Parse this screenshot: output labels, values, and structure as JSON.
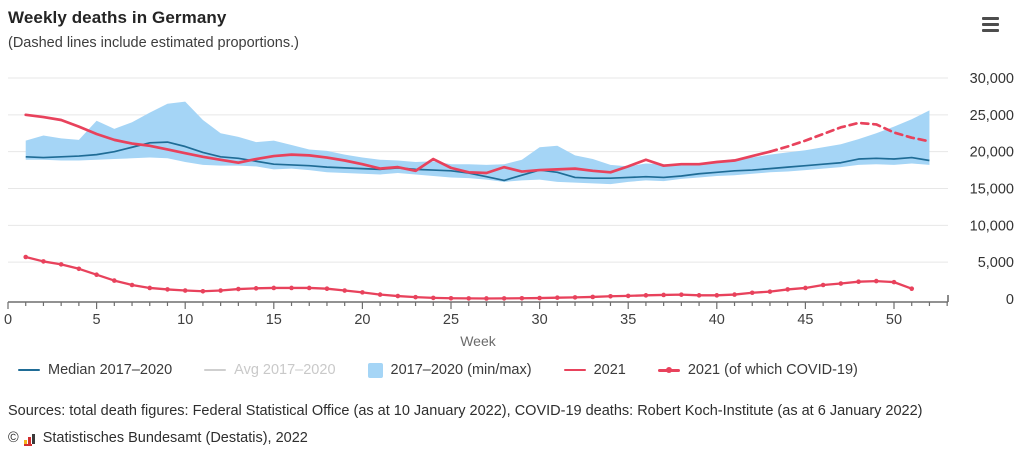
{
  "header": {
    "title": "Weekly deaths in Germany",
    "subtitle": "(Dashed lines include estimated proportions.)"
  },
  "colors": {
    "red": "#e8425c",
    "median_blue": "#1f6c96",
    "band_blue": "#a5d5f6",
    "disabled_gray": "#cfcfcf",
    "grid": "#e7e7e7",
    "axis": "#6e6e6e",
    "tick_text": "#3f3f3f"
  },
  "chart_data": {
    "type": "line",
    "title": "Weekly deaths in Germany",
    "subtitle": "(Dashed lines include estimated proportions.)",
    "xlabel": "Week",
    "ylabel": "",
    "xlim": [
      0,
      53
    ],
    "ylim": [
      0,
      30000
    ],
    "grid": "horizontal",
    "legend_position": "bottom",
    "x_ticks_labeled": [
      0,
      5,
      10,
      15,
      20,
      25,
      30,
      35,
      40,
      45,
      50
    ],
    "y_ticks": [
      [
        0,
        "0"
      ],
      [
        5000,
        "5,000"
      ],
      [
        10000,
        "10,000"
      ],
      [
        15000,
        "15,000"
      ],
      [
        20000,
        "20,000"
      ],
      [
        25000,
        "25,000"
      ],
      [
        30000,
        "30,000"
      ]
    ],
    "weeks": [
      1,
      2,
      3,
      4,
      5,
      6,
      7,
      8,
      9,
      10,
      11,
      12,
      13,
      14,
      15,
      16,
      17,
      18,
      19,
      20,
      21,
      22,
      23,
      24,
      25,
      26,
      27,
      28,
      29,
      30,
      31,
      32,
      33,
      34,
      35,
      36,
      37,
      38,
      39,
      40,
      41,
      42,
      43,
      44,
      45,
      46,
      47,
      48,
      49,
      50,
      51,
      52
    ],
    "series": [
      {
        "name": "Median 2017–2020",
        "type": "line",
        "style": "solid",
        "color": "#1f6c96",
        "values": [
          19300,
          19200,
          19300,
          19400,
          19600,
          20000,
          20600,
          21200,
          21300,
          20700,
          19900,
          19300,
          19100,
          18700,
          18300,
          18200,
          18100,
          17900,
          17800,
          17700,
          17600,
          17800,
          17600,
          17500,
          17400,
          17100,
          16600,
          16100,
          16800,
          17500,
          17200,
          16500,
          16400,
          16400,
          16500,
          16600,
          16500,
          16700,
          17000,
          17200,
          17400,
          17500,
          17700,
          17900,
          18100,
          18300,
          18500,
          19000,
          19100,
          19000,
          19200,
          18800
        ]
      },
      {
        "name": "Avg 2017–2020",
        "type": "line",
        "style": "solid",
        "color": "#cfcfcf",
        "hidden": true,
        "values": []
      },
      {
        "name": "2017–2020 (min/max)",
        "type": "band",
        "color": "#a5d5f6",
        "min": [
          18900,
          18900,
          18800,
          18800,
          18900,
          19000,
          19100,
          19200,
          19100,
          18600,
          18200,
          18100,
          18100,
          18000,
          17600,
          17700,
          17500,
          17200,
          17100,
          17000,
          16900,
          17100,
          16900,
          16700,
          16500,
          16400,
          16200,
          15900,
          16100,
          16200,
          15900,
          15800,
          15700,
          15600,
          15900,
          16100,
          16000,
          16300,
          16500,
          16700,
          16800,
          17000,
          17200,
          17300,
          17500,
          17700,
          17900,
          18200,
          18300,
          18200,
          18400,
          18200
        ],
        "max": [
          21500,
          22200,
          21800,
          21600,
          24200,
          23100,
          24000,
          25300,
          26500,
          26800,
          24300,
          22500,
          22000,
          21300,
          21500,
          20900,
          20300,
          20100,
          19600,
          19200,
          18900,
          18800,
          18600,
          18700,
          18300,
          18300,
          18200,
          18300,
          18900,
          20600,
          20800,
          19500,
          19000,
          18200,
          18000,
          18400,
          18300,
          18300,
          18400,
          18700,
          19000,
          19200,
          19600,
          19900,
          20200,
          20600,
          21000,
          21700,
          22500,
          23400,
          24400,
          25600
        ]
      },
      {
        "name": "2021",
        "type": "line",
        "style": "solid_then_dashed",
        "dashed_from_week": 43,
        "color": "#e8425c",
        "values": [
          25000,
          24700,
          24300,
          23400,
          22400,
          21600,
          21100,
          20800,
          20300,
          19800,
          19300,
          18900,
          18500,
          19000,
          19400,
          19600,
          19500,
          19200,
          18800,
          18300,
          17700,
          17900,
          17400,
          19000,
          17800,
          17200,
          17100,
          17900,
          17300,
          17500,
          17600,
          17700,
          17400,
          17200,
          18000,
          18900,
          18100,
          18300,
          18300,
          18600,
          18800,
          19400,
          20000,
          20700,
          21500,
          22400,
          23300,
          23900,
          23700,
          22600,
          21900,
          21400
        ]
      },
      {
        "name": "2021 (of which COVID-19)",
        "type": "line",
        "style": "solid",
        "markers": true,
        "color": "#e8425c",
        "values": [
          5700,
          5100,
          4700,
          4100,
          3300,
          2500,
          1900,
          1500,
          1300,
          1150,
          1050,
          1150,
          1350,
          1450,
          1500,
          1500,
          1500,
          1400,
          1150,
          900,
          600,
          400,
          250,
          150,
          100,
          80,
          70,
          80,
          100,
          130,
          180,
          220,
          280,
          370,
          420,
          500,
          550,
          590,
          500,
          500,
          600,
          850,
          1000,
          1300,
          1500,
          1900,
          2100,
          2350,
          2430,
          2290,
          1400,
          null
        ]
      }
    ]
  },
  "legend": {
    "items": [
      {
        "label": "Median 2017–2020",
        "disabled": false
      },
      {
        "label": "Avg 2017–2020",
        "disabled": true
      },
      {
        "label": "2017–2020 (min/max)",
        "disabled": false
      },
      {
        "label": "2021",
        "disabled": false
      },
      {
        "label": "2021 (of which COVID-19)",
        "disabled": false
      }
    ]
  },
  "footer": {
    "sources": "Sources: total death figures: Federal Statistical Office (as at 10 January 2022), COVID-19 deaths: Robert Koch-Institute (as at 6 January 2022)",
    "copyright_prefix": "©",
    "copyright": "Statistisches Bundesamt (Destatis), 2022"
  }
}
